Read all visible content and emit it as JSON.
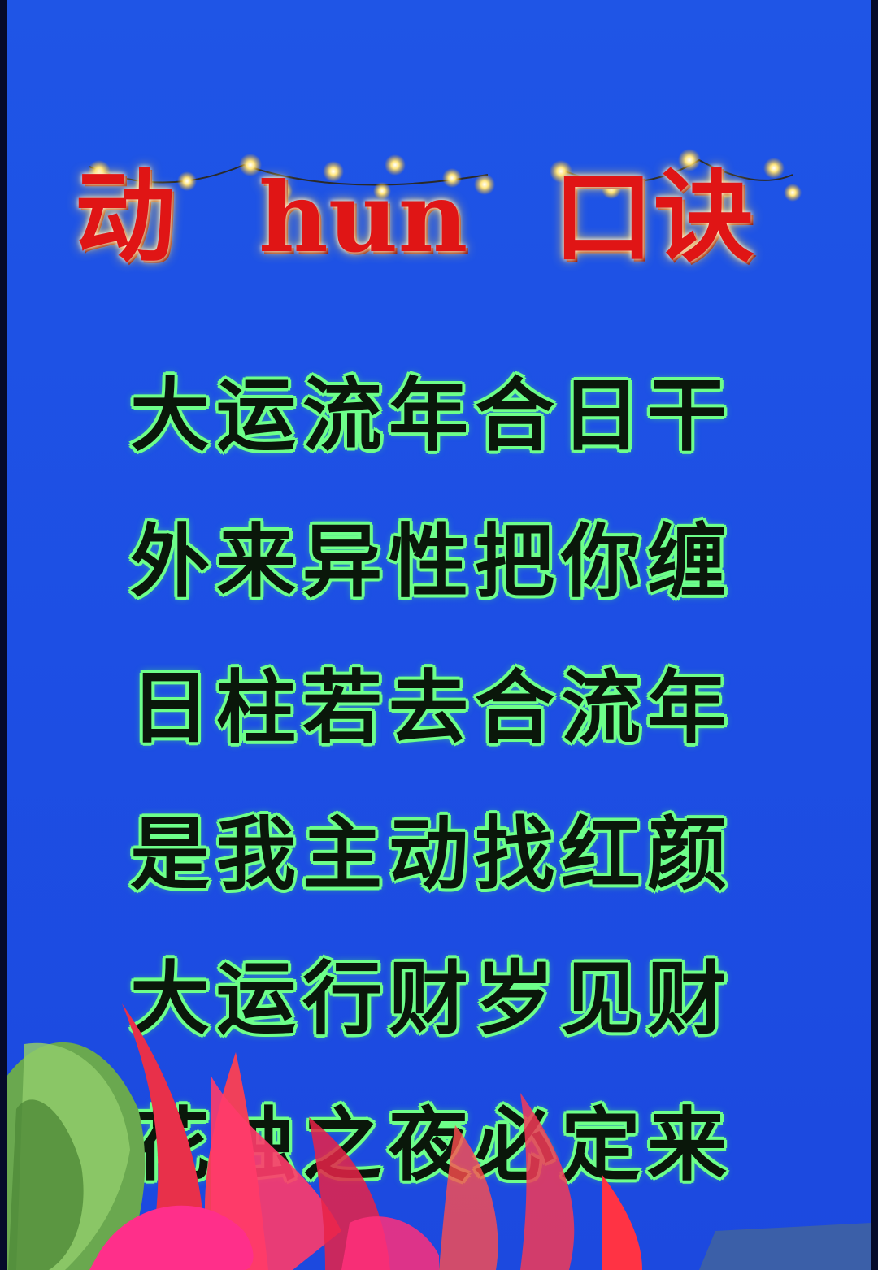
{
  "title": {
    "part1": "动",
    "part2": "hun",
    "part3": "口诀"
  },
  "verses": [
    "大运流年合日干",
    "外来异性把你缠",
    "日柱若去合流年",
    "是我主动找红颜",
    "大运行财岁见财",
    "花烛之夜必定来"
  ],
  "colors": {
    "background": "#1f55e6",
    "title": "#e01515",
    "verse_text": "#0a170a",
    "verse_outline": "#6dff8a"
  },
  "decorations": [
    "string-lights",
    "flowers-and-leaves"
  ]
}
